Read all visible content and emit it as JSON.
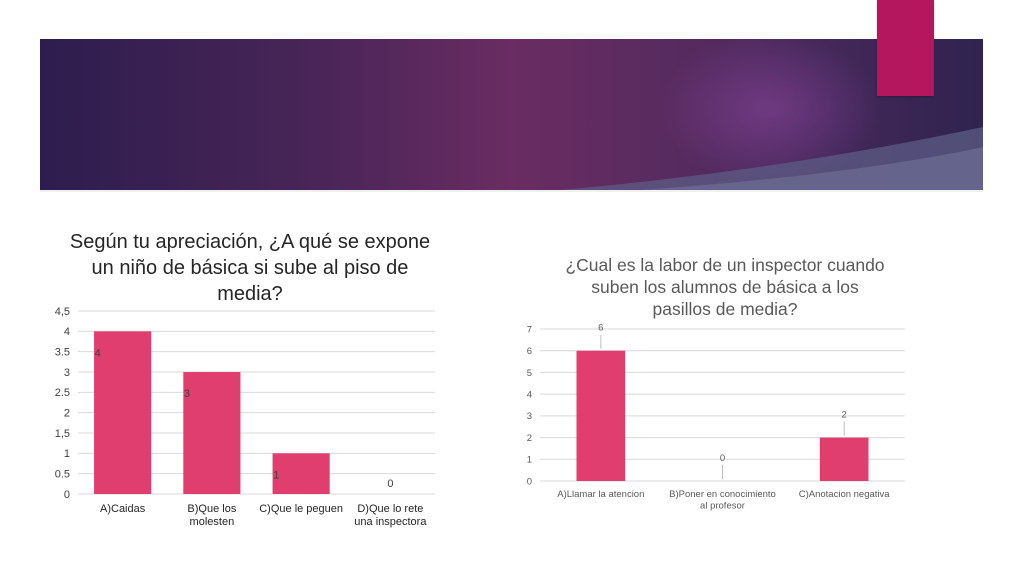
{
  "slide": {
    "colors": {
      "banner_dark": "#2d1d4e",
      "banner_mid": "#6a2c62",
      "accent": "#b5175f",
      "bar": "#e03e6e"
    }
  },
  "chart_data": [
    {
      "type": "bar",
      "title": "Según tu apreciación, ¿A qué se expone un niño de básica si sube al piso de media?",
      "categories": [
        "A)Caidas",
        "B)Que los molesten",
        "C)Que le peguen",
        "D)Que lo rete una inspectora"
      ],
      "values": [
        4,
        3,
        1,
        0
      ],
      "ylim": [
        0,
        4.5
      ],
      "yticks": [
        "0",
        "0.5",
        "1",
        "1,5",
        "2",
        "2.5",
        "3",
        "3.5",
        "4",
        "4,5"
      ],
      "grid": true,
      "data_labels": true,
      "color": "#e03e6e"
    },
    {
      "type": "bar",
      "title": "¿Cual es la labor de un inspector cuando suben los alumnos de básica a los pasillos de media?",
      "categories": [
        "A)Llamar la atencion",
        "B)Poner en conocimiento al profesor",
        "C)Anotacion negativa"
      ],
      "values": [
        6,
        0,
        2
      ],
      "ylim": [
        0,
        7
      ],
      "yticks": [
        "0",
        "1",
        "2",
        "3",
        "4",
        "5",
        "6",
        "7"
      ],
      "grid": true,
      "data_labels": true,
      "color": "#e03e6e"
    }
  ]
}
